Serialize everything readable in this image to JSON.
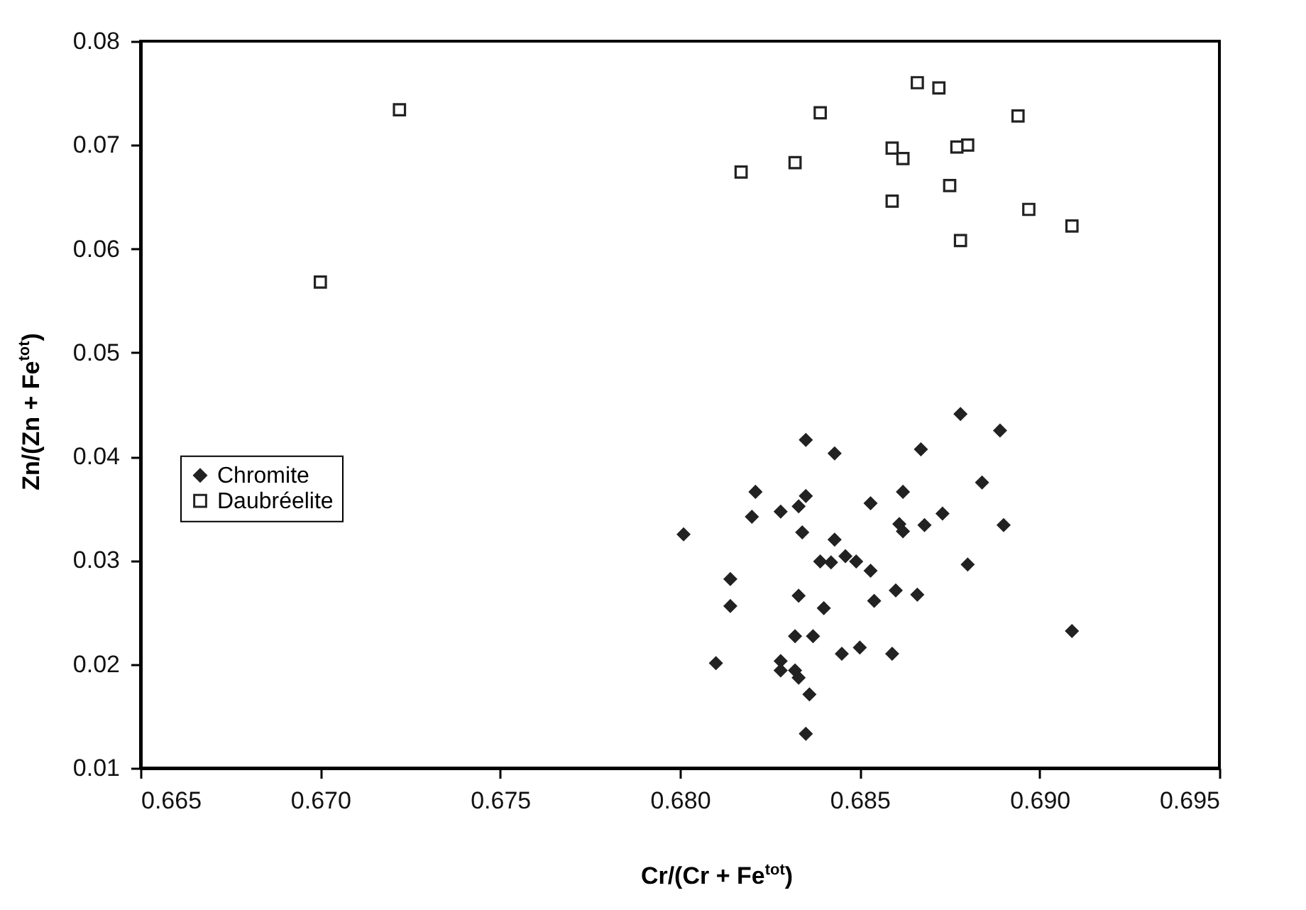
{
  "chart_data": {
    "type": "scatter",
    "xlabel": "Cr/(Cr + Fe$^{tot}$)",
    "ylabel": "Zn/(Zn + Fe$^{tot}$)",
    "xlim": [
      0.665,
      0.695
    ],
    "xticks": [
      {
        "value": 0.665,
        "label": "0.665"
      },
      {
        "value": 0.67,
        "label": "0.670"
      },
      {
        "value": 0.675,
        "label": "0.675"
      },
      {
        "value": 0.68,
        "label": "0.680"
      },
      {
        "value": 0.685,
        "label": "0.685"
      },
      {
        "value": 0.69,
        "label": "0.690"
      },
      {
        "value": 0.695,
        "label": "0.695"
      }
    ],
    "ylim": [
      0.01,
      0.08
    ],
    "yticks": [
      0.01,
      {
        "value": 0.02,
        "label": "0.02"
      },
      {
        "value": 0.03,
        "label": "0.03"
      },
      {
        "value": 0.04,
        "label": "0.04"
      },
      {
        "value": 0.05,
        "label": "0.05"
      },
      {
        "value": 0.06,
        "label": "0.06"
      },
      {
        "value": 0.07,
        "label": "0.07"
      },
      {
        "value": 0.08,
        "label": "0.08"
      }
    ],
    "legend": "left",
    "grid": false,
    "series": [
      {
        "name": "Chromite",
        "color": "#222222",
        "marker": "diamond",
        "x": [
          0.6878,
          0.6889,
          0.6835,
          0.6843,
          0.6867,
          0.6884,
          0.6821,
          0.6835,
          0.6833,
          0.6828,
          0.682,
          0.6853,
          0.6862,
          0.6873,
          0.6861,
          0.6862,
          0.6868,
          0.689,
          0.6801,
          0.6834,
          0.6843,
          0.6839,
          0.6842,
          0.6846,
          0.6849,
          0.6853,
          0.688,
          0.6814,
          0.6814,
          0.6833,
          0.684,
          0.6854,
          0.686,
          0.6866,
          0.6909,
          0.6832,
          0.6837,
          0.6845,
          0.685,
          0.6859,
          0.681,
          0.6828,
          0.6828,
          0.6832,
          0.6833,
          0.6836,
          0.6835
        ],
        "values": [
          0.0441,
          0.0425,
          0.0416,
          0.0403,
          0.0407,
          0.0375,
          0.0366,
          0.0362,
          0.0352,
          0.0347,
          0.0342,
          0.0355,
          0.0366,
          0.0345,
          0.0335,
          0.0328,
          0.0334,
          0.0334,
          0.0325,
          0.0327,
          0.032,
          0.0299,
          0.0298,
          0.0304,
          0.0299,
          0.029,
          0.0296,
          0.0282,
          0.0256,
          0.0266,
          0.0254,
          0.0261,
          0.0271,
          0.0267,
          0.0232,
          0.0227,
          0.0227,
          0.021,
          0.0216,
          0.021,
          0.0201,
          0.0203,
          0.0194,
          0.0194,
          0.0187,
          0.0171,
          0.0133
        ]
      },
      {
        "name": "Daubréelite",
        "color": "#222222",
        "marker": "square",
        "x": [
          0.6722,
          0.67,
          0.6866,
          0.6872,
          0.6839,
          0.6894,
          0.6859,
          0.6862,
          0.688,
          0.6877,
          0.6832,
          0.6817,
          0.6875,
          0.6859,
          0.6897,
          0.6878,
          0.6909
        ],
        "values": [
          0.0734,
          0.0568,
          0.076,
          0.0755,
          0.0731,
          0.0728,
          0.0697,
          0.0687,
          0.07,
          0.0698,
          0.0683,
          0.0674,
          0.0661,
          0.0646,
          0.0638,
          0.0608,
          0.0622
        ]
      }
    ]
  }
}
